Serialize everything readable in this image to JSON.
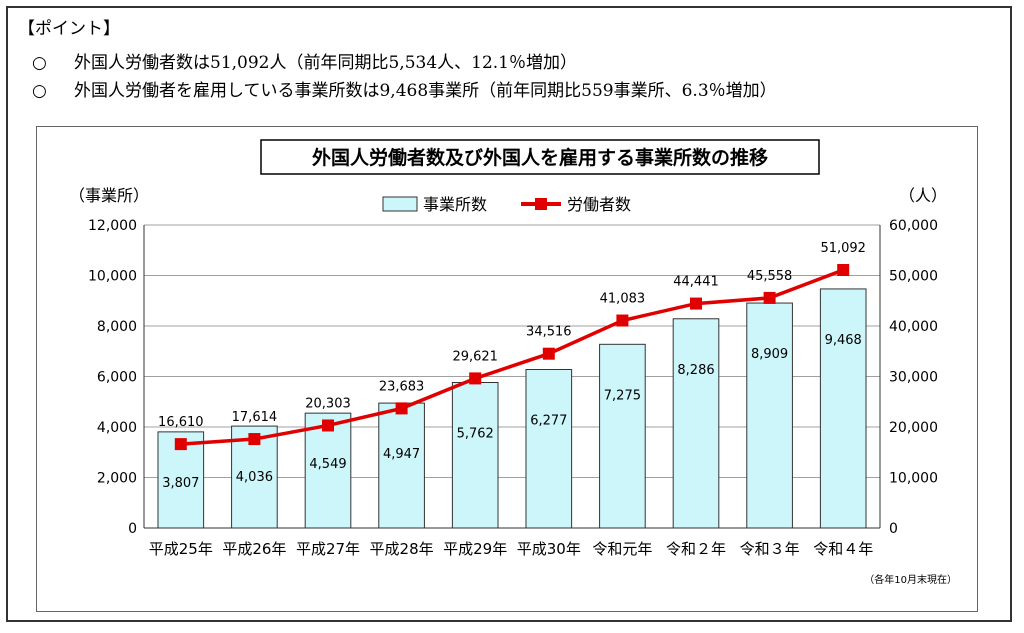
{
  "point": {
    "heading": "【ポイント】",
    "items": [
      {
        "mark": "○",
        "text": "外国人労働者数は51,092人（前年同期比5,534人、12.1％増加）"
      },
      {
        "mark": "○",
        "text": "外国人労働者を雇用している事業所数は9,468事業所（前年同期比559事業所、6.3％増加）"
      }
    ]
  },
  "chart_data": {
    "type": "bar",
    "title": "外国人労働者数及び外国人を雇用する事業所数の推移",
    "categories": [
      "平成25年",
      "平成26年",
      "平成27年",
      "平成28年",
      "平成29年",
      "平成30年",
      "令和元年",
      "令和２年",
      "令和３年",
      "令和４年"
    ],
    "series": [
      {
        "name": "事業所数",
        "type": "bar",
        "axis": "left",
        "color": "#ccf6fa",
        "values": [
          3807,
          4036,
          4549,
          4947,
          5762,
          6277,
          7275,
          8286,
          8909,
          9468
        ]
      },
      {
        "name": "労働者数",
        "type": "line",
        "axis": "right",
        "color": "#e00000",
        "values": [
          16610,
          17614,
          20303,
          23683,
          29621,
          34516,
          41083,
          44441,
          45558,
          51092
        ]
      }
    ],
    "ylabel_left": "（事業所）",
    "ylabel_right": "（人）",
    "ylim_left": [
      0,
      12000
    ],
    "ylim_right": [
      0,
      60000
    ],
    "yticks_left": [
      "0",
      "2,000",
      "4,000",
      "6,000",
      "8,000",
      "10,000",
      "12,000"
    ],
    "yticks_right": [
      "0",
      "10,000",
      "20,000",
      "30,000",
      "40,000",
      "50,000",
      "60,000"
    ],
    "bar_labels": [
      "3,807",
      "4,036",
      "4,549",
      "4,947",
      "5,762",
      "6,277",
      "7,275",
      "8,286",
      "8,909",
      "9,468"
    ],
    "line_labels": [
      "16,610",
      "17,614",
      "20,303",
      "23,683",
      "29,621",
      "34,516",
      "41,083",
      "44,441",
      "45,558",
      "51,092"
    ],
    "note": "（各年10月末現在）",
    "grid": true,
    "legend": "top"
  }
}
